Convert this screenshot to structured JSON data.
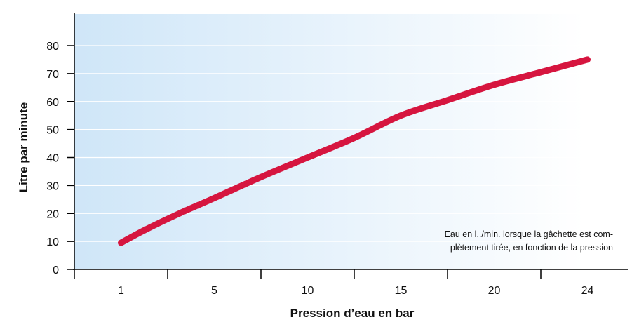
{
  "chart_data": {
    "type": "line",
    "xlabel": "Pression d’eau en bar",
    "ylabel": "Litre par minute",
    "x_ticks": [
      "1",
      "5",
      "10",
      "15",
      "20",
      "24"
    ],
    "ylim": [
      0,
      80
    ],
    "y_ticks": [
      0,
      10,
      20,
      30,
      40,
      50,
      60,
      70,
      80
    ],
    "grid": "horizontal",
    "annotation": {
      "line1": "Eau en l../min. lorsque la gâchette est com-",
      "line2": "plètement tirée, en fonction de la pression"
    },
    "series": [
      {
        "color": "#d6153f",
        "points": [
          {
            "x": 1,
            "y": 9.5
          },
          {
            "x": 2,
            "y": 14
          },
          {
            "x": 3.5,
            "y": 20
          },
          {
            "x": 5,
            "y": 25.5
          },
          {
            "x": 7.5,
            "y": 33
          },
          {
            "x": 10,
            "y": 40
          },
          {
            "x": 12.5,
            "y": 47
          },
          {
            "x": 15,
            "y": 55
          },
          {
            "x": 17.5,
            "y": 60.5
          },
          {
            "x": 20,
            "y": 66
          },
          {
            "x": 22,
            "y": 70.5
          },
          {
            "x": 24,
            "y": 75
          }
        ]
      }
    ]
  },
  "colors": {
    "background_start": "#cfe6f8",
    "background_end": "#ffffff",
    "curve": "#d6153f",
    "grid": "#ffffff",
    "axis": "#000000"
  }
}
